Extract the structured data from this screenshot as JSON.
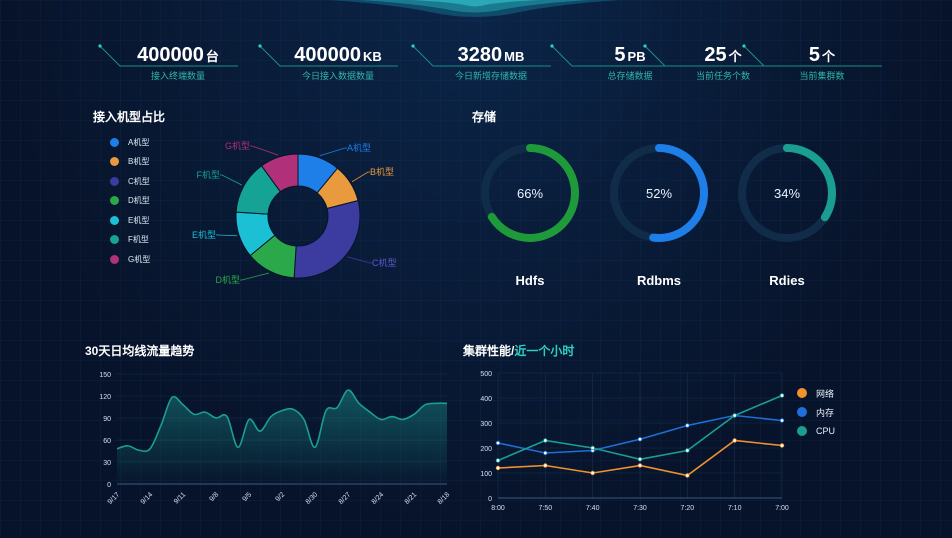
{
  "stats": [
    {
      "value": "400000",
      "unit": "台",
      "label": "接入终端数量"
    },
    {
      "value": "400000",
      "unit": "KB",
      "label": "今日接入数据数量"
    },
    {
      "value": "3280",
      "unit": "MB",
      "label": "今日新增存储数据"
    },
    {
      "value": "5",
      "unit": "PB",
      "label": "总存储数据"
    },
    {
      "value": "25",
      "unit": "个",
      "label": "当前任务个数"
    },
    {
      "value": "5",
      "unit": "个",
      "label": "当前集群数"
    }
  ],
  "panels": {
    "machine_title": "接入机型占比",
    "storage_title": "存储",
    "traffic_title": "30天日均线流量趋势",
    "cluster_title": "集群性能/",
    "cluster_title_accent": "近一个小时"
  },
  "colors": {
    "accent": "#2fd0c2",
    "background": "#07132a",
    "A": "#1e7fe8",
    "B": "#e89a3c",
    "C": "#3b3ba0",
    "D": "#2aa84a",
    "E": "#1bc0d4",
    "F": "#14a394",
    "G": "#b0307a"
  },
  "chart_data": [
    {
      "type": "pie",
      "variant": "donut",
      "categories": [
        "A机型",
        "B机型",
        "C机型",
        "D机型",
        "E机型",
        "F机型",
        "G机型"
      ],
      "values": [
        11,
        10,
        30,
        13,
        12,
        14,
        10
      ],
      "legend_position": "left"
    },
    {
      "type": "gauge",
      "series": [
        {
          "name": "Hdfs",
          "value": 66,
          "color": "#1f9a3a"
        },
        {
          "name": "Rdbms",
          "value": 52,
          "color": "#1e7fe8"
        },
        {
          "name": "Rdies",
          "value": 34,
          "color": "#1b9e92"
        }
      ]
    },
    {
      "type": "area",
      "x": [
        "9/17",
        "9/16",
        "9/15",
        "9/14",
        "9/13",
        "9/12",
        "9/11",
        "9/10",
        "9/9",
        "9/8",
        "9/7",
        "9/6",
        "9/5",
        "9/4",
        "9/3",
        "9/2",
        "9/1",
        "8/31",
        "8/30",
        "8/29",
        "8/28",
        "8/27",
        "8/26",
        "8/25",
        "8/24",
        "8/23",
        "8/22",
        "8/21",
        "8/20",
        "8/19",
        "8/18"
      ],
      "x_tick_labels": [
        "9/17",
        "9/14",
        "9/11",
        "9/8",
        "9/5",
        "9/2",
        "8/30",
        "8/27",
        "8/24",
        "8/21",
        "8/18"
      ],
      "values": [
        48,
        52,
        46,
        48,
        80,
        118,
        108,
        95,
        98,
        90,
        92,
        50,
        88,
        72,
        92,
        100,
        102,
        88,
        50,
        100,
        104,
        128,
        110,
        98,
        88,
        92,
        88,
        95,
        108,
        110,
        110
      ],
      "ylim": [
        0,
        150
      ],
      "yticks": [
        0,
        30,
        60,
        90,
        120,
        150
      ],
      "color": "#1b9e92"
    },
    {
      "type": "line",
      "categories": [
        "8:00",
        "7:50",
        "7:40",
        "7:30",
        "7:20",
        "7:10",
        "7:00"
      ],
      "ylim": [
        0,
        500
      ],
      "yticks": [
        0,
        100,
        200,
        300,
        400,
        500
      ],
      "series": [
        {
          "name": "网络",
          "values": [
            120,
            130,
            100,
            130,
            90,
            230,
            210
          ],
          "color": "#f0922e"
        },
        {
          "name": "内存",
          "values": [
            220,
            180,
            190,
            235,
            290,
            330,
            310
          ],
          "color": "#1e6fd8"
        },
        {
          "name": "CPU",
          "values": [
            150,
            230,
            200,
            155,
            190,
            330,
            410
          ],
          "color": "#1b9e92"
        }
      ],
      "legend_position": "right"
    }
  ]
}
